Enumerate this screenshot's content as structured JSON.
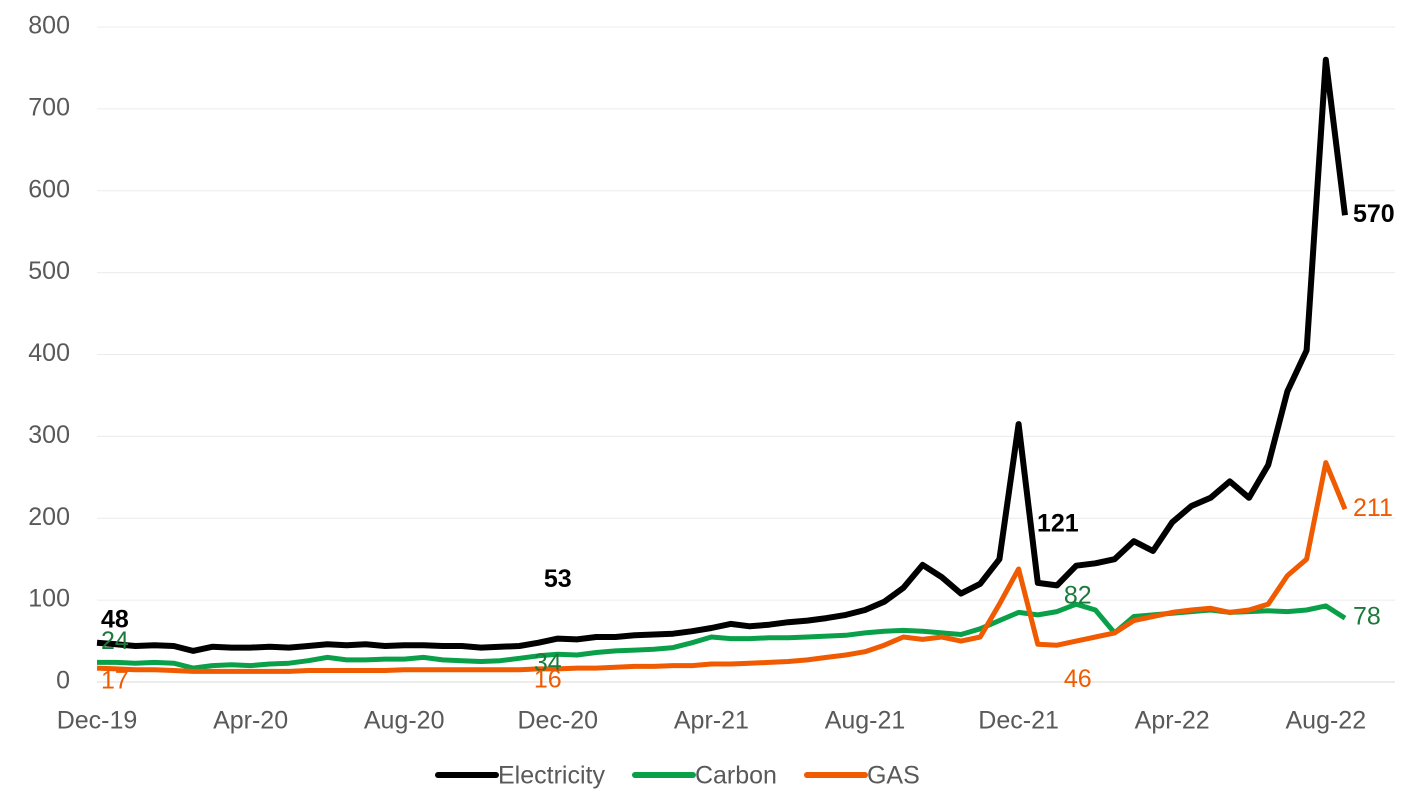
{
  "chart_data": {
    "type": "line",
    "categories": [
      "Dec-19",
      null,
      null,
      null,
      null,
      null,
      null,
      null,
      "Apr-20",
      null,
      null,
      null,
      null,
      null,
      null,
      null,
      "Aug-20",
      null,
      null,
      null,
      null,
      null,
      null,
      null,
      "Dec-20",
      null,
      null,
      null,
      null,
      null,
      null,
      null,
      "Apr-21",
      null,
      null,
      null,
      null,
      null,
      null,
      null,
      "Aug-21",
      null,
      null,
      null,
      null,
      null,
      null,
      null,
      "Dec-21",
      null,
      null,
      null,
      null,
      null,
      null,
      null,
      "Apr-22",
      null,
      null,
      null,
      null,
      null,
      null,
      null,
      "Aug-22",
      null
    ],
    "series": [
      {
        "name": "Electricity",
        "color": "#000000",
        "label_color": "#000000",
        "values": [
          48,
          46,
          44,
          45,
          44,
          38,
          43,
          42,
          42,
          43,
          42,
          44,
          46,
          45,
          46,
          44,
          45,
          45,
          44,
          44,
          42,
          43,
          44,
          48,
          53,
          52,
          55,
          55,
          57,
          58,
          59,
          62,
          66,
          71,
          68,
          70,
          73,
          75,
          78,
          82,
          88,
          98,
          115,
          143,
          128,
          108,
          120,
          150,
          315,
          121,
          118,
          142,
          145,
          150,
          172,
          160,
          195,
          215,
          225,
          245,
          225,
          265,
          355,
          405,
          760,
          570
        ]
      },
      {
        "name": "Carbon",
        "color": "#0aa04a",
        "label_color": "#1b7a3a",
        "values": [
          24,
          24,
          23,
          24,
          23,
          17,
          20,
          21,
          20,
          22,
          23,
          26,
          30,
          27,
          27,
          28,
          28,
          30,
          27,
          26,
          25,
          26,
          29,
          32,
          34,
          33,
          36,
          38,
          39,
          40,
          42,
          48,
          55,
          53,
          53,
          54,
          54,
          55,
          56,
          57,
          60,
          62,
          63,
          62,
          60,
          58,
          65,
          75,
          85,
          82,
          86,
          95,
          88,
          60,
          80,
          82,
          84,
          86,
          88,
          85,
          86,
          87,
          86,
          88,
          93,
          78
        ]
      },
      {
        "name": "GAS",
        "color": "#f05a00",
        "label_color": "#f05a00",
        "values": [
          17,
          16,
          15,
          15,
          14,
          13,
          13,
          13,
          13,
          13,
          13,
          14,
          14,
          14,
          14,
          14,
          15,
          15,
          15,
          15,
          15,
          15,
          15,
          16,
          16,
          17,
          17,
          18,
          19,
          19,
          20,
          20,
          22,
          22,
          23,
          24,
          25,
          27,
          30,
          33,
          37,
          45,
          55,
          52,
          55,
          50,
          55,
          95,
          138,
          46,
          45,
          50,
          55,
          60,
          75,
          80,
          85,
          88,
          90,
          85,
          88,
          95,
          130,
          150,
          268,
          211
        ]
      }
    ],
    "data_labels_at": [
      0,
      24,
      49,
      65
    ],
    "ylim": [
      0,
      800
    ],
    "yticks": [
      0,
      100,
      200,
      300,
      400,
      500,
      600,
      700,
      800
    ],
    "grid": true,
    "legend": "bottom"
  }
}
